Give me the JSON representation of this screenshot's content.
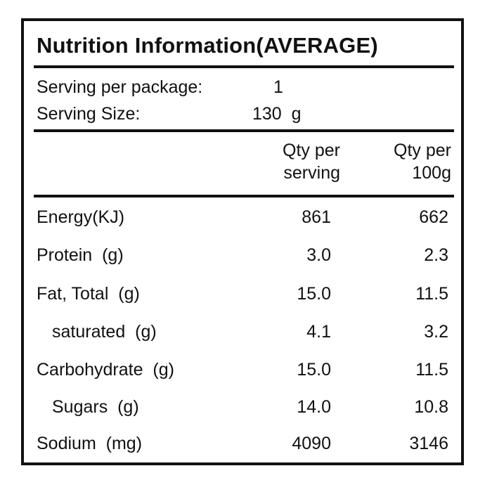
{
  "title": "Nutrition Information(AVERAGE)",
  "serving": {
    "per_package_label": "Serving per package:",
    "per_package_value": "1",
    "size_label": "Serving Size:",
    "size_value": "130  g"
  },
  "columns": {
    "per_serving_line1": "Qty per",
    "per_serving_line2": "serving",
    "per_100g_line1": "Qty per",
    "per_100g_line2": "100g"
  },
  "rows": [
    {
      "label": "Energy(KJ)",
      "per_serving": "861",
      "per_100g": "662"
    },
    {
      "label": "Protein  (g)",
      "per_serving": "3.0",
      "per_100g": "2.3"
    },
    {
      "label": "Fat, Total  (g)",
      "per_serving": "15.0",
      "per_100g": "11.5"
    },
    {
      "label": "saturated  (g)",
      "per_serving": "4.1",
      "per_100g": "3.2"
    },
    {
      "label": "Carbohydrate  (g)",
      "per_serving": "15.0",
      "per_100g": "11.5"
    },
    {
      "label": "Sugars  (g)",
      "per_serving": "14.0",
      "per_100g": "10.8"
    },
    {
      "label": "Sodium  (mg)",
      "per_serving": "4090",
      "per_100g": "3146"
    }
  ]
}
